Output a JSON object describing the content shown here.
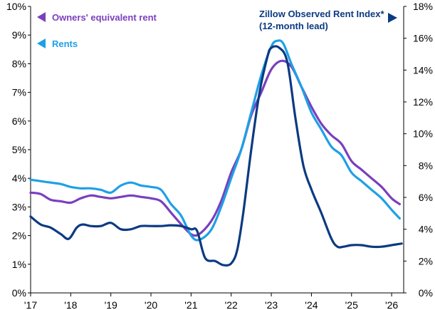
{
  "colors": {
    "oer": "#7a3fbe",
    "rents": "#1ea0e6",
    "zori": "#0b3a82",
    "axis": "#000000"
  },
  "chart_data": {
    "type": "line",
    "title": "",
    "xlabel": "",
    "ylabel_left": "",
    "ylabel_right": "",
    "x_ticks": [
      "'17",
      "'18",
      "'19",
      "'20",
      "'21",
      "'22",
      "'23",
      "'24",
      "'25",
      "'26"
    ],
    "y_left_ticks": [
      "0%",
      "1%",
      "2%",
      "3%",
      "4%",
      "5%",
      "6%",
      "7%",
      "8%",
      "9%",
      "10%"
    ],
    "y_right_ticks": [
      "0%",
      "2%",
      "4%",
      "6%",
      "8%",
      "10%",
      "12%",
      "14%",
      "16%",
      "18%"
    ],
    "ylim_left": [
      0,
      10
    ],
    "ylim_right": [
      0,
      18
    ],
    "xlim": [
      2017.0,
      2026.3
    ],
    "grid": false,
    "legend": [
      {
        "label": "Owners' equivalent rent",
        "axis": "left",
        "series": "oer"
      },
      {
        "label": "Rents",
        "axis": "left",
        "series": "rents"
      },
      {
        "label": "Zillow Observed Rent Index*",
        "label2": "(12-month lead)",
        "axis": "right",
        "series": "zori"
      }
    ],
    "series": [
      {
        "id": "oer",
        "name": "Owners' equivalent rent",
        "axis": "left",
        "x": [
          2017.0,
          2017.25,
          2017.5,
          2017.75,
          2018.0,
          2018.25,
          2018.5,
          2018.75,
          2019.0,
          2019.25,
          2019.5,
          2019.75,
          2020.0,
          2020.25,
          2020.5,
          2020.75,
          2021.0,
          2021.2,
          2021.5,
          2021.75,
          2022.0,
          2022.25,
          2022.5,
          2022.75,
          2023.0,
          2023.25,
          2023.5,
          2023.75,
          2024.0,
          2024.25,
          2024.5,
          2024.75,
          2025.0,
          2025.25,
          2025.5,
          2025.75,
          2026.0,
          2026.2
        ],
        "y": [
          3.5,
          3.45,
          3.25,
          3.2,
          3.15,
          3.3,
          3.4,
          3.35,
          3.3,
          3.35,
          3.4,
          3.35,
          3.3,
          3.2,
          2.8,
          2.4,
          2.05,
          2.05,
          2.5,
          3.2,
          4.2,
          5.0,
          6.2,
          7.0,
          7.8,
          8.1,
          7.9,
          7.2,
          6.5,
          5.9,
          5.5,
          5.2,
          4.6,
          4.3,
          4.0,
          3.7,
          3.3,
          3.1
        ]
      },
      {
        "id": "rents",
        "name": "Rents",
        "axis": "left",
        "x": [
          2017.0,
          2017.25,
          2017.5,
          2017.75,
          2018.0,
          2018.25,
          2018.5,
          2018.75,
          2019.0,
          2019.25,
          2019.5,
          2019.75,
          2020.0,
          2020.25,
          2020.5,
          2020.75,
          2021.0,
          2021.2,
          2021.5,
          2021.75,
          2022.0,
          2022.25,
          2022.5,
          2022.75,
          2023.0,
          2023.15,
          2023.3,
          2023.5,
          2023.75,
          2024.0,
          2024.25,
          2024.5,
          2024.75,
          2025.0,
          2025.25,
          2025.5,
          2025.75,
          2026.0,
          2026.2
        ],
        "y": [
          3.95,
          3.9,
          3.85,
          3.8,
          3.7,
          3.65,
          3.65,
          3.6,
          3.5,
          3.75,
          3.85,
          3.75,
          3.7,
          3.6,
          3.1,
          2.7,
          2.0,
          1.85,
          2.2,
          3.0,
          4.0,
          5.0,
          6.3,
          7.6,
          8.6,
          8.8,
          8.7,
          8.0,
          7.2,
          6.3,
          5.7,
          5.1,
          4.8,
          4.2,
          3.9,
          3.6,
          3.3,
          2.9,
          2.6
        ]
      },
      {
        "id": "zori",
        "name": "Zillow Observed Rent Index*",
        "axis": "right",
        "x": [
          2017.0,
          2017.25,
          2017.5,
          2017.75,
          2017.95,
          2018.15,
          2018.3,
          2018.5,
          2018.75,
          2019.0,
          2019.25,
          2019.5,
          2019.75,
          2020.0,
          2020.25,
          2020.5,
          2020.75,
          2021.0,
          2021.15,
          2021.35,
          2021.6,
          2021.8,
          2022.0,
          2022.15,
          2022.3,
          2022.5,
          2022.7,
          2022.9,
          2023.0,
          2023.2,
          2023.4,
          2023.6,
          2023.8,
          2024.0,
          2024.25,
          2024.5,
          2024.65,
          2024.8,
          2025.0,
          2025.25,
          2025.5,
          2025.75,
          2026.0,
          2026.25
        ],
        "y": [
          4.8,
          4.3,
          4.1,
          3.7,
          3.4,
          4.1,
          4.3,
          4.2,
          4.2,
          4.4,
          4.0,
          4.0,
          4.2,
          4.2,
          4.2,
          4.25,
          4.2,
          4.0,
          3.9,
          2.2,
          2.0,
          1.75,
          1.85,
          2.7,
          5.0,
          9.0,
          12.5,
          14.8,
          15.4,
          15.4,
          14.5,
          11.0,
          8.0,
          6.5,
          5.0,
          3.4,
          2.9,
          2.9,
          3.0,
          3.0,
          2.9,
          2.9,
          3.0,
          3.1
        ]
      }
    ]
  }
}
